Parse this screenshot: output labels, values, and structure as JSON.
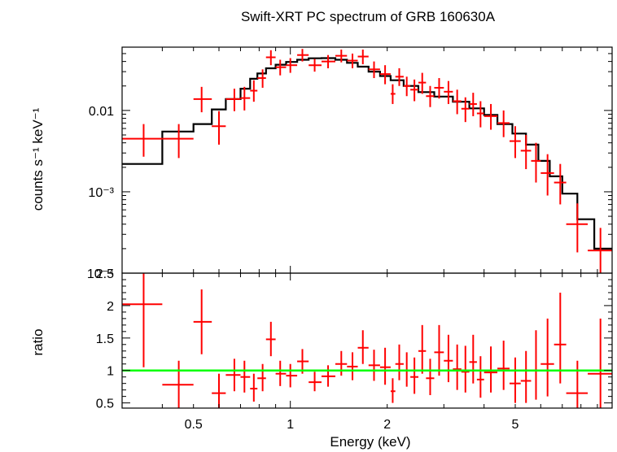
{
  "chart_data": [
    {
      "type": "scatter",
      "title": "Swift-XRT PC spectrum of GRB 160630A",
      "xlabel": "",
      "ylabel": "counts s⁻¹ keV⁻¹",
      "xscale": "log",
      "yscale": "log",
      "xlim": [
        0.3,
        10
      ],
      "ylim": [
        0.0001,
        0.06
      ],
      "y_ticks": [
        "0.01",
        "10⁻³",
        "10⁻⁴"
      ],
      "series": [
        {
          "style": "step-model",
          "color": "#000000",
          "steps": [
            {
              "x0": 0.3,
              "x1": 0.4,
              "y": 0.0022
            },
            {
              "x0": 0.4,
              "x1": 0.5,
              "y": 0.0055
            },
            {
              "x0": 0.5,
              "x1": 0.57,
              "y": 0.0068
            },
            {
              "x0": 0.57,
              "x1": 0.63,
              "y": 0.0103
            },
            {
              "x0": 0.63,
              "x1": 0.7,
              "y": 0.0138
            },
            {
              "x0": 0.7,
              "x1": 0.75,
              "y": 0.0185
            },
            {
              "x0": 0.75,
              "x1": 0.79,
              "y": 0.0245
            },
            {
              "x0": 0.79,
              "x1": 0.84,
              "y": 0.0285
            },
            {
              "x0": 0.84,
              "x1": 0.9,
              "y": 0.033
            },
            {
              "x0": 0.9,
              "x1": 0.97,
              "y": 0.0365
            },
            {
              "x0": 0.97,
              "x1": 1.05,
              "y": 0.0395
            },
            {
              "x0": 1.05,
              "x1": 1.14,
              "y": 0.042
            },
            {
              "x0": 1.14,
              "x1": 1.25,
              "y": 0.0438
            },
            {
              "x0": 1.25,
              "x1": 1.38,
              "y": 0.044
            },
            {
              "x0": 1.38,
              "x1": 1.5,
              "y": 0.042
            },
            {
              "x0": 1.5,
              "x1": 1.62,
              "y": 0.0385
            },
            {
              "x0": 1.62,
              "x1": 1.75,
              "y": 0.0345
            },
            {
              "x0": 1.75,
              "x1": 1.9,
              "y": 0.03
            },
            {
              "x0": 1.9,
              "x1": 2.05,
              "y": 0.0265
            },
            {
              "x0": 2.05,
              "x1": 2.25,
              "y": 0.0235
            },
            {
              "x0": 2.25,
              "x1": 2.5,
              "y": 0.02
            },
            {
              "x0": 2.5,
              "x1": 2.8,
              "y": 0.0168
            },
            {
              "x0": 2.8,
              "x1": 3.2,
              "y": 0.0148
            },
            {
              "x0": 3.2,
              "x1": 3.6,
              "y": 0.0128
            },
            {
              "x0": 3.6,
              "x1": 4.0,
              "y": 0.0106
            },
            {
              "x0": 4.0,
              "x1": 4.4,
              "y": 0.0088
            },
            {
              "x0": 4.4,
              "x1": 4.9,
              "y": 0.0068
            },
            {
              "x0": 4.9,
              "x1": 5.4,
              "y": 0.0052
            },
            {
              "x0": 5.4,
              "x1": 5.9,
              "y": 0.0038
            },
            {
              "x0": 5.9,
              "x1": 6.4,
              "y": 0.0024
            },
            {
              "x0": 6.4,
              "x1": 7.0,
              "y": 0.00155
            },
            {
              "x0": 7.0,
              "x1": 7.8,
              "y": 0.00095
            },
            {
              "x0": 7.8,
              "x1": 8.8,
              "y": 0.00046
            },
            {
              "x0": 8.8,
              "x1": 10.0,
              "y": 0.0002
            }
          ]
        },
        {
          "style": "errorbar",
          "color": "#ff0000",
          "points": [
            {
              "x": 0.35,
              "xlo": 0.3,
              "xhi": 0.4,
              "y": 0.0045,
              "ylo": 0.0027,
              "yhi": 0.0068
            },
            {
              "x": 0.45,
              "xlo": 0.4,
              "xhi": 0.5,
              "y": 0.0045,
              "ylo": 0.0026,
              "yhi": 0.0068
            },
            {
              "x": 0.53,
              "xlo": 0.5,
              "xhi": 0.57,
              "y": 0.0138,
              "ylo": 0.0095,
              "yhi": 0.0195
            },
            {
              "x": 0.6,
              "xlo": 0.57,
              "xhi": 0.63,
              "y": 0.0064,
              "ylo": 0.0038,
              "yhi": 0.0098
            },
            {
              "x": 0.67,
              "xlo": 0.63,
              "xhi": 0.7,
              "y": 0.0138,
              "ylo": 0.0098,
              "yhi": 0.0185
            },
            {
              "x": 0.72,
              "xlo": 0.7,
              "xhi": 0.75,
              "y": 0.0142,
              "ylo": 0.01,
              "yhi": 0.0195
            },
            {
              "x": 0.77,
              "xlo": 0.75,
              "xhi": 0.79,
              "y": 0.0175,
              "ylo": 0.0128,
              "yhi": 0.0235
            },
            {
              "x": 0.82,
              "xlo": 0.79,
              "xhi": 0.84,
              "y": 0.025,
              "ylo": 0.019,
              "yhi": 0.032
            },
            {
              "x": 0.87,
              "xlo": 0.84,
              "xhi": 0.9,
              "y": 0.045,
              "ylo": 0.036,
              "yhi": 0.055
            },
            {
              "x": 0.93,
              "xlo": 0.9,
              "xhi": 0.97,
              "y": 0.034,
              "ylo": 0.027,
              "yhi": 0.042
            },
            {
              "x": 1.0,
              "xlo": 0.97,
              "xhi": 1.05,
              "y": 0.036,
              "ylo": 0.029,
              "yhi": 0.044
            },
            {
              "x": 1.09,
              "xlo": 1.05,
              "xhi": 1.14,
              "y": 0.048,
              "ylo": 0.04,
              "yhi": 0.057
            },
            {
              "x": 1.19,
              "xlo": 1.14,
              "xhi": 1.25,
              "y": 0.036,
              "ylo": 0.03,
              "yhi": 0.043
            },
            {
              "x": 1.31,
              "xlo": 1.25,
              "xhi": 1.38,
              "y": 0.04,
              "ylo": 0.033,
              "yhi": 0.048
            },
            {
              "x": 1.44,
              "xlo": 1.38,
              "xhi": 1.5,
              "y": 0.047,
              "ylo": 0.039,
              "yhi": 0.056
            },
            {
              "x": 1.56,
              "xlo": 1.5,
              "xhi": 1.62,
              "y": 0.041,
              "ylo": 0.033,
              "yhi": 0.05
            },
            {
              "x": 1.68,
              "xlo": 1.62,
              "xhi": 1.75,
              "y": 0.046,
              "ylo": 0.037,
              "yhi": 0.056
            },
            {
              "x": 1.82,
              "xlo": 1.75,
              "xhi": 1.9,
              "y": 0.032,
              "ylo": 0.025,
              "yhi": 0.04
            },
            {
              "x": 1.97,
              "xlo": 1.9,
              "xhi": 2.05,
              "y": 0.028,
              "ylo": 0.021,
              "yhi": 0.036
            },
            {
              "x": 2.08,
              "xlo": 2.05,
              "xhi": 2.12,
              "y": 0.016,
              "ylo": 0.012,
              "yhi": 0.021
            },
            {
              "x": 2.18,
              "xlo": 2.12,
              "xhi": 2.25,
              "y": 0.026,
              "ylo": 0.02,
              "yhi": 0.033
            },
            {
              "x": 2.3,
              "xlo": 2.25,
              "xhi": 2.36,
              "y": 0.02,
              "ylo": 0.015,
              "yhi": 0.026
            },
            {
              "x": 2.43,
              "xlo": 2.36,
              "xhi": 2.5,
              "y": 0.018,
              "ylo": 0.013,
              "yhi": 0.024
            },
            {
              "x": 2.57,
              "xlo": 2.5,
              "xhi": 2.64,
              "y": 0.022,
              "ylo": 0.016,
              "yhi": 0.029
            },
            {
              "x": 2.72,
              "xlo": 2.64,
              "xhi": 2.8,
              "y": 0.015,
              "ylo": 0.011,
              "yhi": 0.02
            },
            {
              "x": 2.9,
              "xlo": 2.8,
              "xhi": 3.0,
              "y": 0.019,
              "ylo": 0.014,
              "yhi": 0.025
            },
            {
              "x": 3.1,
              "xlo": 3.0,
              "xhi": 3.2,
              "y": 0.017,
              "ylo": 0.012,
              "yhi": 0.023
            },
            {
              "x": 3.3,
              "xlo": 3.2,
              "xhi": 3.4,
              "y": 0.013,
              "ylo": 0.009,
              "yhi": 0.018
            },
            {
              "x": 3.5,
              "xlo": 3.4,
              "xhi": 3.6,
              "y": 0.0105,
              "ylo": 0.0072,
              "yhi": 0.0145
            },
            {
              "x": 3.7,
              "xlo": 3.6,
              "xhi": 3.8,
              "y": 0.012,
              "ylo": 0.0085,
              "yhi": 0.0165
            },
            {
              "x": 3.9,
              "xlo": 3.8,
              "xhi": 4.0,
              "y": 0.0092,
              "ylo": 0.0062,
              "yhi": 0.013
            },
            {
              "x": 4.2,
              "xlo": 4.0,
              "xhi": 4.4,
              "y": 0.0085,
              "ylo": 0.0058,
              "yhi": 0.012
            },
            {
              "x": 4.6,
              "xlo": 4.4,
              "xhi": 4.8,
              "y": 0.007,
              "ylo": 0.0047,
              "yhi": 0.01
            },
            {
              "x": 5.0,
              "xlo": 4.8,
              "xhi": 5.2,
              "y": 0.0042,
              "ylo": 0.0026,
              "yhi": 0.0064
            },
            {
              "x": 5.4,
              "xlo": 5.2,
              "xhi": 5.6,
              "y": 0.0032,
              "ylo": 0.0019,
              "yhi": 0.005
            },
            {
              "x": 5.8,
              "xlo": 5.6,
              "xhi": 6.0,
              "y": 0.0024,
              "ylo": 0.0013,
              "yhi": 0.004
            },
            {
              "x": 6.3,
              "xlo": 6.0,
              "xhi": 6.6,
              "y": 0.0017,
              "ylo": 0.0009,
              "yhi": 0.0029
            },
            {
              "x": 6.9,
              "xlo": 6.6,
              "xhi": 7.2,
              "y": 0.0013,
              "ylo": 0.0007,
              "yhi": 0.0022
            },
            {
              "x": 7.8,
              "xlo": 7.2,
              "xhi": 8.4,
              "y": 0.0004,
              "ylo": 0.00018,
              "yhi": 0.00072
            },
            {
              "x": 9.2,
              "xlo": 8.4,
              "xhi": 10.0,
              "y": 0.00019,
              "ylo": 9e-05,
              "yhi": 0.00036
            }
          ]
        }
      ]
    },
    {
      "type": "scatter",
      "title": "",
      "xlabel": "Energy (keV)",
      "ylabel": "ratio",
      "xscale": "log",
      "xlim": [
        0.3,
        10
      ],
      "ylim": [
        0.42,
        2.5
      ],
      "x_ticks": [
        "0.5",
        "1",
        "2",
        "5"
      ],
      "y_ticks": [
        "0.5",
        "1",
        "1.5",
        "2",
        "2.5"
      ],
      "reference_line": {
        "y": 1.0,
        "color": "#00ff00"
      },
      "series": [
        {
          "style": "errorbar",
          "color": "#ff0000",
          "points": [
            {
              "x": 0.35,
              "xlo": 0.3,
              "xhi": 0.4,
              "y": 2.02,
              "ylo": 1.05,
              "yhi": 2.5
            },
            {
              "x": 0.45,
              "xlo": 0.4,
              "xhi": 0.5,
              "y": 0.78,
              "ylo": 0.42,
              "yhi": 1.15
            },
            {
              "x": 0.53,
              "xlo": 0.5,
              "xhi": 0.57,
              "y": 1.75,
              "ylo": 1.25,
              "yhi": 2.25
            },
            {
              "x": 0.6,
              "xlo": 0.57,
              "xhi": 0.63,
              "y": 0.65,
              "ylo": 0.42,
              "yhi": 0.95
            },
            {
              "x": 0.67,
              "xlo": 0.63,
              "xhi": 0.7,
              "y": 0.93,
              "ylo": 0.68,
              "yhi": 1.18
            },
            {
              "x": 0.72,
              "xlo": 0.7,
              "xhi": 0.75,
              "y": 0.9,
              "ylo": 0.66,
              "yhi": 1.15
            },
            {
              "x": 0.77,
              "xlo": 0.75,
              "xhi": 0.79,
              "y": 0.72,
              "ylo": 0.52,
              "yhi": 0.95
            },
            {
              "x": 0.82,
              "xlo": 0.79,
              "xhi": 0.84,
              "y": 0.88,
              "ylo": 0.68,
              "yhi": 1.1
            },
            {
              "x": 0.87,
              "xlo": 0.84,
              "xhi": 0.9,
              "y": 1.48,
              "ylo": 1.22,
              "yhi": 1.75
            },
            {
              "x": 0.93,
              "xlo": 0.9,
              "xhi": 0.97,
              "y": 0.95,
              "ylo": 0.76,
              "yhi": 1.15
            },
            {
              "x": 1.0,
              "xlo": 0.97,
              "xhi": 1.05,
              "y": 0.92,
              "ylo": 0.74,
              "yhi": 1.1
            },
            {
              "x": 1.09,
              "xlo": 1.05,
              "xhi": 1.14,
              "y": 1.14,
              "ylo": 0.95,
              "yhi": 1.33
            },
            {
              "x": 1.19,
              "xlo": 1.14,
              "xhi": 1.25,
              "y": 0.82,
              "ylo": 0.68,
              "yhi": 0.98
            },
            {
              "x": 1.31,
              "xlo": 1.25,
              "xhi": 1.38,
              "y": 0.91,
              "ylo": 0.75,
              "yhi": 1.08
            },
            {
              "x": 1.44,
              "xlo": 1.38,
              "xhi": 1.5,
              "y": 1.1,
              "ylo": 0.92,
              "yhi": 1.3
            },
            {
              "x": 1.56,
              "xlo": 1.5,
              "xhi": 1.62,
              "y": 1.06,
              "ylo": 0.85,
              "yhi": 1.28
            },
            {
              "x": 1.68,
              "xlo": 1.62,
              "xhi": 1.75,
              "y": 1.35,
              "ylo": 1.1,
              "yhi": 1.62
            },
            {
              "x": 1.82,
              "xlo": 1.75,
              "xhi": 1.9,
              "y": 1.08,
              "ylo": 0.84,
              "yhi": 1.32
            },
            {
              "x": 1.97,
              "xlo": 1.9,
              "xhi": 2.05,
              "y": 1.05,
              "ylo": 0.78,
              "yhi": 1.35
            },
            {
              "x": 2.08,
              "xlo": 2.05,
              "xhi": 2.12,
              "y": 0.68,
              "ylo": 0.5,
              "yhi": 0.88
            },
            {
              "x": 2.18,
              "xlo": 2.12,
              "xhi": 2.25,
              "y": 1.1,
              "ylo": 0.85,
              "yhi": 1.4
            },
            {
              "x": 2.3,
              "xlo": 2.25,
              "xhi": 2.36,
              "y": 1.0,
              "ylo": 0.75,
              "yhi": 1.28
            },
            {
              "x": 2.43,
              "xlo": 2.36,
              "xhi": 2.5,
              "y": 0.9,
              "ylo": 0.64,
              "yhi": 1.2
            },
            {
              "x": 2.57,
              "xlo": 2.5,
              "xhi": 2.64,
              "y": 1.3,
              "ylo": 0.95,
              "yhi": 1.7
            },
            {
              "x": 2.72,
              "xlo": 2.64,
              "xhi": 2.8,
              "y": 0.88,
              "ylo": 0.62,
              "yhi": 1.18
            },
            {
              "x": 2.9,
              "xlo": 2.8,
              "xhi": 3.0,
              "y": 1.28,
              "ylo": 0.92,
              "yhi": 1.7
            },
            {
              "x": 3.1,
              "xlo": 3.0,
              "xhi": 3.2,
              "y": 1.15,
              "ylo": 0.82,
              "yhi": 1.55
            },
            {
              "x": 3.3,
              "xlo": 3.2,
              "xhi": 3.4,
              "y": 1.02,
              "ylo": 0.7,
              "yhi": 1.4
            },
            {
              "x": 3.5,
              "xlo": 3.4,
              "xhi": 3.6,
              "y": 0.98,
              "ylo": 0.66,
              "yhi": 1.38
            },
            {
              "x": 3.7,
              "xlo": 3.6,
              "xhi": 3.8,
              "y": 1.13,
              "ylo": 0.8,
              "yhi": 1.55
            },
            {
              "x": 3.9,
              "xlo": 3.8,
              "xhi": 4.0,
              "y": 0.86,
              "ylo": 0.58,
              "yhi": 1.22
            },
            {
              "x": 4.2,
              "xlo": 4.0,
              "xhi": 4.4,
              "y": 0.97,
              "ylo": 0.66,
              "yhi": 1.37
            },
            {
              "x": 4.6,
              "xlo": 4.4,
              "xhi": 4.8,
              "y": 1.03,
              "ylo": 0.7,
              "yhi": 1.46
            },
            {
              "x": 5.0,
              "xlo": 4.8,
              "xhi": 5.2,
              "y": 0.8,
              "ylo": 0.5,
              "yhi": 1.2
            },
            {
              "x": 5.4,
              "xlo": 5.2,
              "xhi": 5.6,
              "y": 0.84,
              "ylo": 0.5,
              "yhi": 1.3
            },
            {
              "x": 5.8,
              "xlo": 5.6,
              "xhi": 6.0,
              "y": 1.0,
              "ylo": 0.55,
              "yhi": 1.62
            },
            {
              "x": 6.3,
              "xlo": 6.0,
              "xhi": 6.6,
              "y": 1.1,
              "ylo": 0.6,
              "yhi": 1.8
            },
            {
              "x": 6.9,
              "xlo": 6.6,
              "xhi": 7.2,
              "y": 1.4,
              "ylo": 0.8,
              "yhi": 2.2
            },
            {
              "x": 7.8,
              "xlo": 7.2,
              "xhi": 8.4,
              "y": 0.65,
              "ylo": 0.42,
              "yhi": 1.15
            },
            {
              "x": 9.2,
              "xlo": 8.4,
              "xhi": 10.0,
              "y": 0.95,
              "ylo": 0.42,
              "yhi": 1.8
            }
          ]
        }
      ]
    }
  ]
}
